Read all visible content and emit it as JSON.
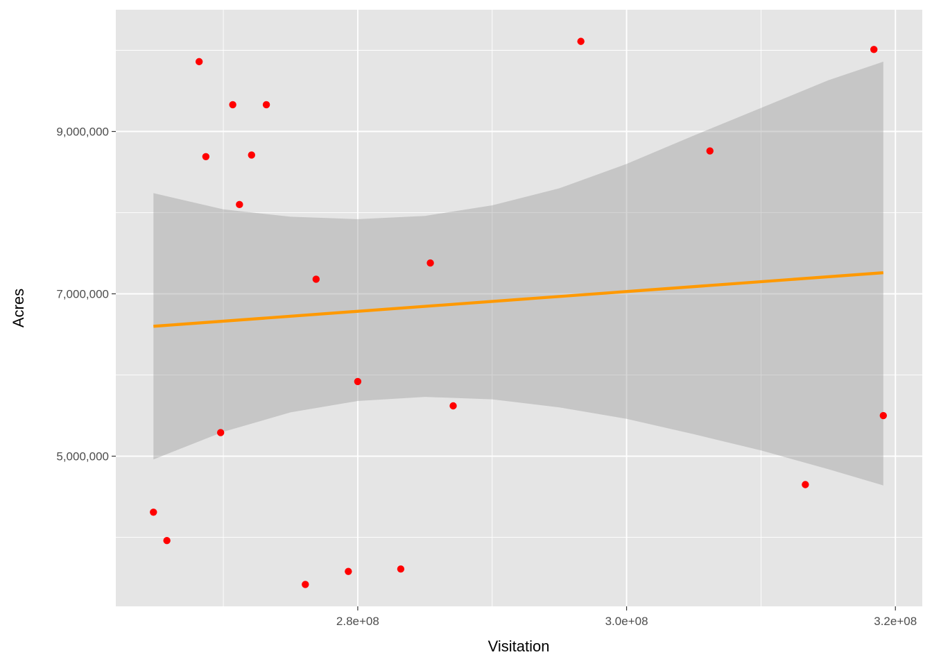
{
  "chart_data": {
    "type": "scatter",
    "title": "",
    "xlabel": "Visitation",
    "ylabel": "Acres",
    "xlim": [
      262000000,
      322000000
    ],
    "ylim": [
      3150000,
      10500000
    ],
    "x_ticks": [
      {
        "value": 280000000,
        "label": "2.8e+08"
      },
      {
        "value": 300000000,
        "label": "3.0e+08"
      },
      {
        "value": 320000000,
        "label": "3.2e+08"
      }
    ],
    "x_minor_ticks": [
      270000000,
      290000000,
      310000000
    ],
    "y_ticks": [
      {
        "value": 5000000,
        "label": "5,000,000"
      },
      {
        "value": 7000000,
        "label": "7,000,000"
      },
      {
        "value": 9000000,
        "label": "9,000,000"
      }
    ],
    "y_minor_ticks": [
      4000000,
      6000000,
      8000000,
      10000000
    ],
    "grid": true,
    "points": [
      {
        "x": 264800000,
        "y": 4310000
      },
      {
        "x": 265800000,
        "y": 3960000
      },
      {
        "x": 268200000,
        "y": 9860000
      },
      {
        "x": 268700000,
        "y": 8690000
      },
      {
        "x": 269800000,
        "y": 5290000
      },
      {
        "x": 270700000,
        "y": 9330000
      },
      {
        "x": 271200000,
        "y": 8100000
      },
      {
        "x": 272100000,
        "y": 8710000
      },
      {
        "x": 273200000,
        "y": 9330000
      },
      {
        "x": 276100000,
        "y": 3420000
      },
      {
        "x": 276900000,
        "y": 7180000
      },
      {
        "x": 279300000,
        "y": 3580000
      },
      {
        "x": 280000000,
        "y": 5920000
      },
      {
        "x": 283200000,
        "y": 3610000
      },
      {
        "x": 285400000,
        "y": 7380000
      },
      {
        "x": 287100000,
        "y": 5620000
      },
      {
        "x": 296600000,
        "y": 10110000
      },
      {
        "x": 306200000,
        "y": 8760000
      },
      {
        "x": 313300000,
        "y": 4650000
      },
      {
        "x": 318400000,
        "y": 10010000
      },
      {
        "x": 319100000,
        "y": 5500000
      }
    ],
    "trend_line": {
      "x": [
        264800000,
        319100000
      ],
      "y": [
        6600000,
        7260000
      ]
    },
    "confidence_band": {
      "x": [
        264800000,
        270000000,
        275000000,
        280000000,
        285000000,
        290000000,
        295000000,
        300000000,
        305000000,
        310000000,
        315000000,
        319100000
      ],
      "upper": [
        8240000,
        8040000,
        7950000,
        7920000,
        7960000,
        8090000,
        8300000,
        8600000,
        8950000,
        9290000,
        9630000,
        9860000
      ],
      "lower": [
        4960000,
        5300000,
        5540000,
        5680000,
        5730000,
        5700000,
        5600000,
        5460000,
        5270000,
        5070000,
        4840000,
        4640000
      ]
    },
    "colors": {
      "point": "#ff0000",
      "trend_line": "#ff9900",
      "band": "#999999",
      "panel": "#e5e5e5",
      "grid": "#ffffff"
    }
  }
}
